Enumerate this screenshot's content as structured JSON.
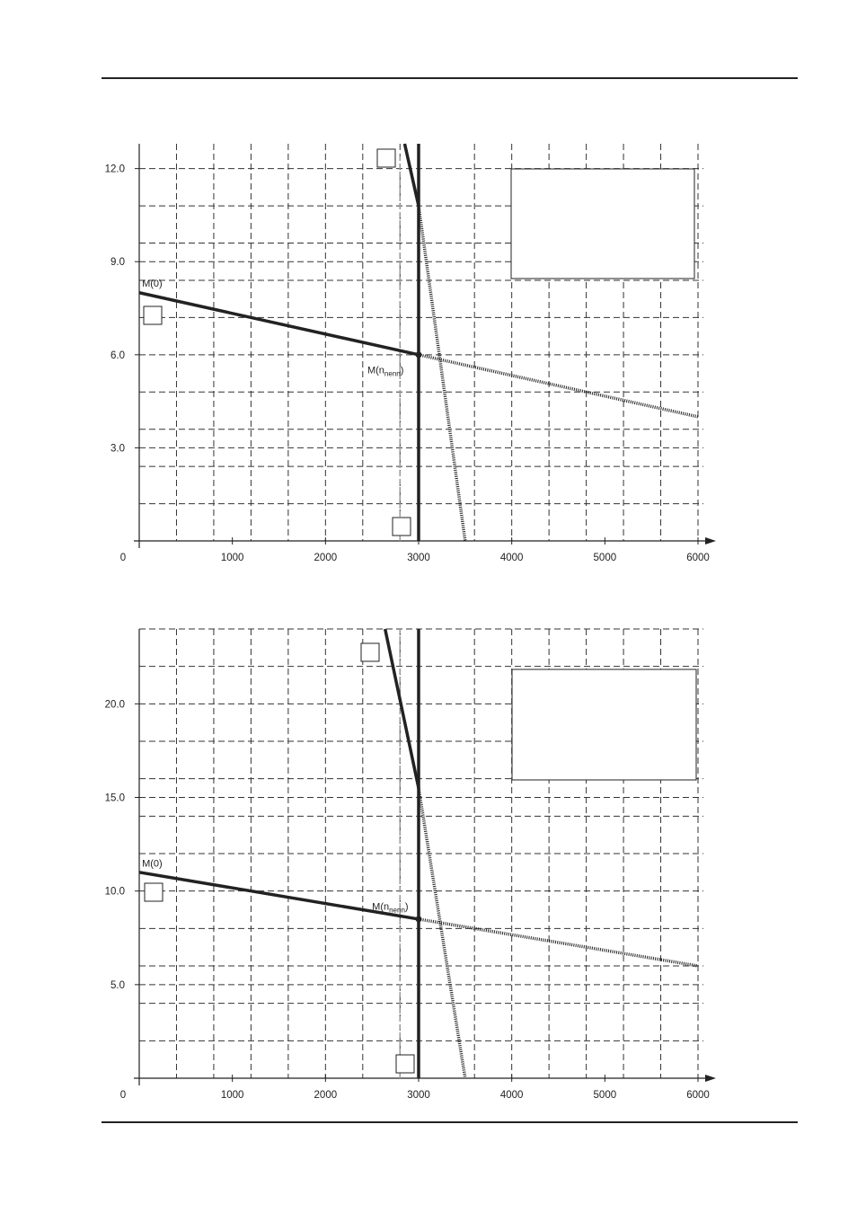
{
  "chart_data": [
    {
      "type": "line",
      "title": "",
      "xlabel": "",
      "ylabel": "",
      "xlim": [
        0,
        6000
      ],
      "ylim": [
        0,
        12.8
      ],
      "x_ticks": [
        0,
        1000,
        2000,
        3000,
        4000,
        5000,
        6000
      ],
      "x_tick_labels": [
        "0",
        "1000",
        "2000",
        "3000",
        "4000",
        "5000",
        "6000"
      ],
      "y_ticks": [
        3.0,
        6.0,
        9.0,
        12.0
      ],
      "y_tick_labels": [
        "3.0",
        "6.0",
        "9.0",
        "12.0"
      ],
      "x_grid": [
        400,
        800,
        1200,
        1600,
        2000,
        2400,
        2800,
        3600,
        4000,
        4400,
        4800,
        5200,
        5600,
        6000
      ],
      "y_grid": [
        1.2,
        2.4,
        3.0,
        3.6,
        4.8,
        6.0,
        7.2,
        8.4,
        9.0,
        9.6,
        10.8,
        12.0
      ],
      "grid": true,
      "series": [
        {
          "style": "solid",
          "x": [
            0,
            3000
          ],
          "y": [
            8.0,
            6.0
          ]
        },
        {
          "style": "dotted",
          "x": [
            3000,
            6000
          ],
          "y": [
            6.0,
            4.0
          ]
        },
        {
          "style": "solid",
          "x": [
            3000,
            3000
          ],
          "y": [
            0,
            12.8
          ]
        },
        {
          "style": "solid",
          "x": [
            2850,
            3000
          ],
          "y": [
            12.8,
            10.8
          ]
        },
        {
          "style": "dotted",
          "x": [
            3000,
            3500
          ],
          "y": [
            10.8,
            0
          ]
        }
      ],
      "reference_line": {
        "x": 2800,
        "y_from": 0,
        "y_to": 12.4
      },
      "point": {
        "x": 3000,
        "y": 6.0
      },
      "annotations": [
        {
          "label": "M(0)",
          "x": 30,
          "y": 8.2
        },
        {
          "label": "M(n",
          "subscript": "nenn",
          "suffix": ")",
          "x": 2450,
          "y": 5.4
        }
      ]
    },
    {
      "type": "line",
      "title": "",
      "xlabel": "",
      "ylabel": "",
      "xlim": [
        0,
        6000
      ],
      "ylim": [
        0,
        24.0
      ],
      "x_ticks": [
        0,
        1000,
        2000,
        3000,
        4000,
        5000,
        6000
      ],
      "x_tick_labels": [
        "0",
        "1000",
        "2000",
        "3000",
        "4000",
        "5000",
        "6000"
      ],
      "y_ticks": [
        5.0,
        10.0,
        15.0,
        20.0
      ],
      "y_tick_labels": [
        "5.0",
        "10.0",
        "15.0",
        "20.0"
      ],
      "x_grid": [
        400,
        800,
        1200,
        1600,
        2000,
        2400,
        2800,
        3600,
        4000,
        4400,
        4800,
        5200,
        5600,
        6000
      ],
      "y_grid": [
        2.0,
        4.0,
        5.0,
        6.0,
        8.0,
        10.0,
        12.0,
        14.0,
        15.0,
        16.0,
        18.0,
        20.0,
        22.0,
        24.0
      ],
      "grid": true,
      "series": [
        {
          "style": "solid",
          "x": [
            0,
            3000
          ],
          "y": [
            11.0,
            8.5
          ]
        },
        {
          "style": "dotted",
          "x": [
            3000,
            6000
          ],
          "y": [
            8.5,
            6.0
          ]
        },
        {
          "style": "solid",
          "x": [
            3000,
            3000
          ],
          "y": [
            0,
            24.0
          ]
        },
        {
          "style": "solid",
          "x": [
            2640,
            3000
          ],
          "y": [
            24.0,
            15.5
          ]
        },
        {
          "style": "dotted",
          "x": [
            3000,
            3500
          ],
          "y": [
            15.5,
            0
          ]
        }
      ],
      "reference_line": {
        "x": 2800,
        "y_from": 0,
        "y_to": 24.0
      },
      "point": {
        "x": 3000,
        "y": 8.5
      },
      "annotations": [
        {
          "label": "M(0)",
          "x": 30,
          "y": 11.3
        },
        {
          "label": "M(n",
          "subscript": "nenn",
          "suffix": ")",
          "x": 2500,
          "y": 9.0
        }
      ]
    }
  ]
}
